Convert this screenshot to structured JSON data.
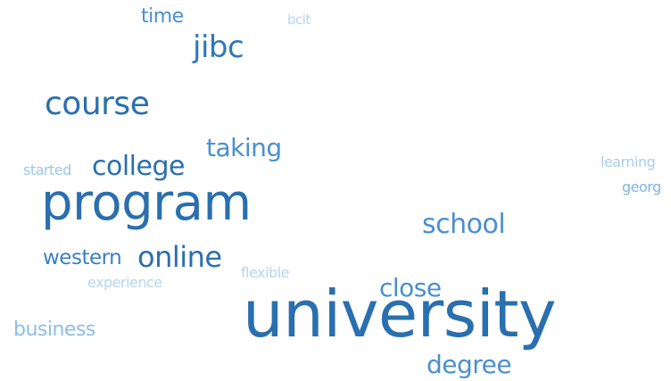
{
  "words": [
    {
      "id": "university",
      "text": "university",
      "weight": 10,
      "color": "#2a6fae"
    },
    {
      "id": "program",
      "text": "program",
      "weight": 9,
      "color": "#2a6fae"
    },
    {
      "id": "course",
      "text": "course",
      "weight": 6,
      "color": "#2a6fae"
    },
    {
      "id": "college",
      "text": "college",
      "weight": 5,
      "color": "#2a6fae"
    },
    {
      "id": "online",
      "text": "online",
      "weight": 5,
      "color": "#2a6fae"
    },
    {
      "id": "jibc",
      "text": "jibc",
      "weight": 5,
      "color": "#2f78b8"
    },
    {
      "id": "taking",
      "text": "taking",
      "weight": 5,
      "color": "#4a8fcf"
    },
    {
      "id": "school",
      "text": "school",
      "weight": 5,
      "color": "#4a8fcf"
    },
    {
      "id": "close",
      "text": "close",
      "weight": 4,
      "color": "#4a8fcf"
    },
    {
      "id": "degree",
      "text": "degree",
      "weight": 4,
      "color": "#4a8fcf"
    },
    {
      "id": "western",
      "text": "western",
      "weight": 3,
      "color": "#3a80c0"
    },
    {
      "id": "time",
      "text": "time",
      "weight": 3,
      "color": "#4a8fcf"
    },
    {
      "id": "business",
      "text": "business",
      "weight": 3,
      "color": "#8dbde6"
    },
    {
      "id": "started",
      "text": "started",
      "weight": 2,
      "color": "#9cc6ea"
    },
    {
      "id": "experience",
      "text": "experience",
      "weight": 2,
      "color": "#b6d5f0"
    },
    {
      "id": "flexible",
      "text": "flexible",
      "weight": 2,
      "color": "#b6d5f0"
    },
    {
      "id": "bcit",
      "text": "bcit",
      "weight": 2,
      "color": "#b6d5f0"
    },
    {
      "id": "learning",
      "text": "learning",
      "weight": 2,
      "color": "#a9cdee"
    },
    {
      "id": "georg",
      "text": "georg",
      "weight": 2,
      "color": "#7fb3e2"
    }
  ]
}
